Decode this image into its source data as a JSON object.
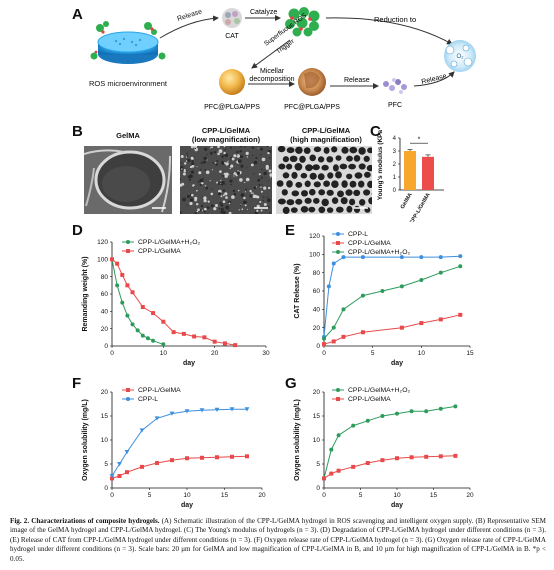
{
  "panels": {
    "A": "A",
    "B": "B",
    "C": "C",
    "D": "D",
    "E": "E",
    "F": "F",
    "G": "G"
  },
  "schematic": {
    "ros_label": "ROS microenvironment",
    "release1": "Release",
    "cat_label": "CAT",
    "catalyze": "Catalyze",
    "reduction": "Reduction to",
    "o2_symbol": "O₂",
    "superfluous": "Superfluous ROS",
    "trigger": "Trigger",
    "micellar": "Micellar",
    "decomposition": "decomposition",
    "release2": "Release",
    "release3": "Release",
    "particle1_label": "PFC@PLGA/PPS",
    "particle2_label": "PFC@PLGA/PPS",
    "pfc_label": "PFC"
  },
  "sem": {
    "titles": [
      "GelMA",
      "CPP-L/GelMA\n(low magnification)",
      "CPP-L/GelMA\n(high magnification)"
    ]
  },
  "charts": {
    "C": {
      "type": "bar",
      "categories": [
        "GelMA",
        "CPP-L/GelMA"
      ],
      "values": [
        3.0,
        2.55
      ],
      "errors": [
        0.12,
        0.15
      ],
      "ylabel": "Young's modulus (KPa)",
      "yticks": [
        0,
        1,
        2,
        3,
        4
      ],
      "ylim": [
        0,
        4
      ],
      "significance": "*",
      "colors": [
        "#f7a72b",
        "#ec4d4b"
      ]
    },
    "D": {
      "type": "scatter",
      "xlabel": "day",
      "ylabel": "Remanding weight (%)",
      "xlim": [
        0,
        30
      ],
      "ylim": [
        0,
        120
      ],
      "xticks": [
        0,
        10,
        20,
        30
      ],
      "yticks": [
        0,
        20,
        40,
        60,
        80,
        100,
        120
      ],
      "series": [
        {
          "name": "CPP-L/GelMA+H₂O₂",
          "color": "#2e9b5c",
          "x": [
            0,
            1,
            2,
            3,
            4,
            5,
            6,
            7,
            8,
            10
          ],
          "y": [
            100,
            70,
            50,
            35,
            25,
            18,
            12,
            9,
            6,
            2
          ]
        },
        {
          "name": "CPP-L/GelMA",
          "color": "#e9494a",
          "x": [
            0,
            1,
            2,
            3,
            4,
            6,
            8,
            10,
            12,
            14,
            16,
            18,
            20,
            22,
            24
          ],
          "y": [
            100,
            95,
            82,
            70,
            62,
            45,
            38,
            28,
            16,
            14,
            11,
            10,
            5,
            3,
            1
          ]
        }
      ]
    },
    "E": {
      "type": "scatter",
      "xlabel": "day",
      "ylabel": "CAT Release (%)",
      "xlim": [
        0,
        15
      ],
      "ylim": [
        0,
        120
      ],
      "xticks": [
        0,
        5,
        10,
        15
      ],
      "yticks": [
        0,
        20,
        40,
        60,
        80,
        100,
        120
      ],
      "series": [
        {
          "name": "CPP-L",
          "color": "#3d8fe0",
          "x": [
            0,
            0.5,
            1,
            2,
            4,
            8,
            10,
            12,
            14
          ],
          "y": [
            10,
            65,
            90,
            97,
            97,
            97,
            97,
            97,
            98
          ]
        },
        {
          "name": "CPP-L/GelMA",
          "color": "#e9494a",
          "x": [
            0,
            1,
            2,
            4,
            8,
            10,
            12,
            14
          ],
          "y": [
            2,
            5,
            10,
            15,
            20,
            25,
            29,
            34
          ]
        },
        {
          "name": "CPP-L/GelMA+H₂O₂",
          "color": "#2e9b5c",
          "x": [
            0,
            1,
            2,
            4,
            6,
            8,
            10,
            12,
            14
          ],
          "y": [
            8,
            20,
            40,
            55,
            60,
            65,
            72,
            80,
            87
          ]
        }
      ]
    },
    "F": {
      "type": "scatter",
      "xlabel": "day",
      "ylabel": "Oxygen solubility (mg/L)",
      "xlim": [
        0,
        20
      ],
      "ylim": [
        0,
        20
      ],
      "xticks": [
        0,
        5,
        10,
        15,
        20
      ],
      "yticks": [
        0,
        5,
        10,
        15,
        20
      ],
      "series": [
        {
          "name": "CPP-L/GelMA",
          "color": "#e9494a",
          "x": [
            0,
            1,
            2,
            4,
            6,
            8,
            10,
            12,
            14,
            16,
            18
          ],
          "y": [
            2,
            2.5,
            3.3,
            4.4,
            5.2,
            5.8,
            6.2,
            6.3,
            6.4,
            6.5,
            6.6
          ]
        },
        {
          "name": "CPP-L",
          "color": "#3d8fe0",
          "x": [
            0,
            1,
            2,
            4,
            6,
            8,
            10,
            12,
            14,
            16,
            18
          ],
          "y": [
            2.5,
            5,
            7.5,
            12,
            14.5,
            15.5,
            16,
            16.2,
            16.3,
            16.4,
            16.4
          ]
        }
      ]
    },
    "G": {
      "type": "scatter",
      "xlabel": "day",
      "ylabel": "Oxygen solubility (mg/L)",
      "xlim": [
        0,
        20
      ],
      "ylim": [
        0,
        20
      ],
      "xticks": [
        0,
        5,
        10,
        15,
        20
      ],
      "yticks": [
        0,
        5,
        10,
        15,
        20
      ],
      "series": [
        {
          "name": "CPP-L/GelMA+H₂O₂",
          "color": "#2e9b5c",
          "x": [
            0,
            1,
            2,
            4,
            6,
            8,
            10,
            12,
            14,
            16,
            18
          ],
          "y": [
            2,
            8,
            11,
            13,
            14,
            15,
            15.5,
            16,
            16,
            16.5,
            17
          ]
        },
        {
          "name": "CPP-L/GelMA",
          "color": "#e9494a",
          "x": [
            0,
            1,
            2,
            4,
            6,
            8,
            10,
            12,
            14,
            16,
            18
          ],
          "y": [
            2,
            3,
            3.6,
            4.4,
            5.2,
            5.8,
            6.2,
            6.4,
            6.5,
            6.6,
            6.7
          ]
        }
      ]
    }
  },
  "caption": {
    "bold": "Fig. 2.  Characterizations of composite hydrogels.",
    "text": " (A) Schematic illustration of the CPP-L/GelMA hydrogel in ROS scavenging and intelligent oxygen supply. (B) Representative SEM image of the GelMA hydrogel and CPP-L/GelMA hydrogel. (C) The Young's modulus of hydrogels (n = 3). (D) Degradation of CPP-L/GelMA hydrogel under different conditions (n = 3). (E) Release of CAT from CPP-L/GelMA hydrogel under different conditions (n = 3). (F) Oxygen release rate of CPP-L/GelMA hydrogel (n = 3). (G) Oxygen release rate of CPP-L/GelMA hydrogel under different conditions (n = 3). Scale bars: 20 μm for GelMA and low magnification of CPP-L/GelMA in B, and 10 μm for high magnification of CPP-L/GelMA in B. *p < 0.05."
  }
}
